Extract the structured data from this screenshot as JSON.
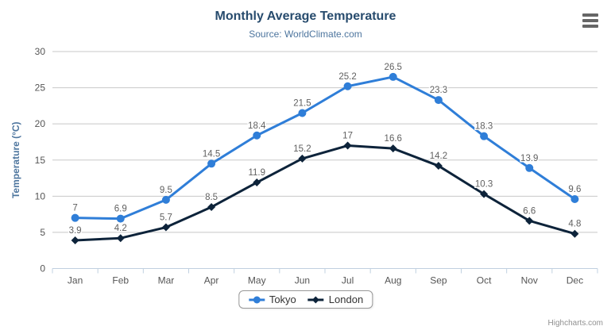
{
  "chart": {
    "title": "Monthly Average Temperature",
    "subtitle": "Source: WorldClimate.com",
    "credits": "Highcharts.com",
    "context_menu_icon": "hamburger-icon",
    "colors": {
      "title": "#274b6d",
      "subtitle": "#4d759e",
      "axis_title": "#4d759e",
      "axis_labels": "#555555",
      "gridline": "#c8c8c8",
      "x_axis_line": "#c0d0e0",
      "data_label": "#606060",
      "legend_border": "#999999",
      "credits": "#909090"
    }
  },
  "chart_data": {
    "type": "line",
    "title": "Monthly Average Temperature",
    "subtitle": "Source: WorldClimate.com",
    "categories": [
      "Jan",
      "Feb",
      "Mar",
      "Apr",
      "May",
      "Jun",
      "Jul",
      "Aug",
      "Sep",
      "Oct",
      "Nov",
      "Dec"
    ],
    "series": [
      {
        "name": "Tokyo",
        "color": "#2f7ed8",
        "marker": "circle",
        "values": [
          7,
          6.9,
          9.5,
          14.5,
          18.4,
          21.5,
          25.2,
          26.5,
          23.3,
          18.3,
          13.9,
          9.6
        ]
      },
      {
        "name": "London",
        "color": "#0d233a",
        "marker": "diamond",
        "values": [
          3.9,
          4.2,
          5.7,
          8.5,
          11.9,
          15.2,
          17,
          16.6,
          14.2,
          10.3,
          6.6,
          4.8
        ]
      }
    ],
    "xlabel": "",
    "ylabel": "Temperature (°C)",
    "ylim": [
      0,
      30
    ],
    "yticks": [
      0,
      5,
      10,
      15,
      20,
      25,
      30
    ],
    "grid": true,
    "data_labels": true,
    "legend_position": "bottom-center"
  }
}
